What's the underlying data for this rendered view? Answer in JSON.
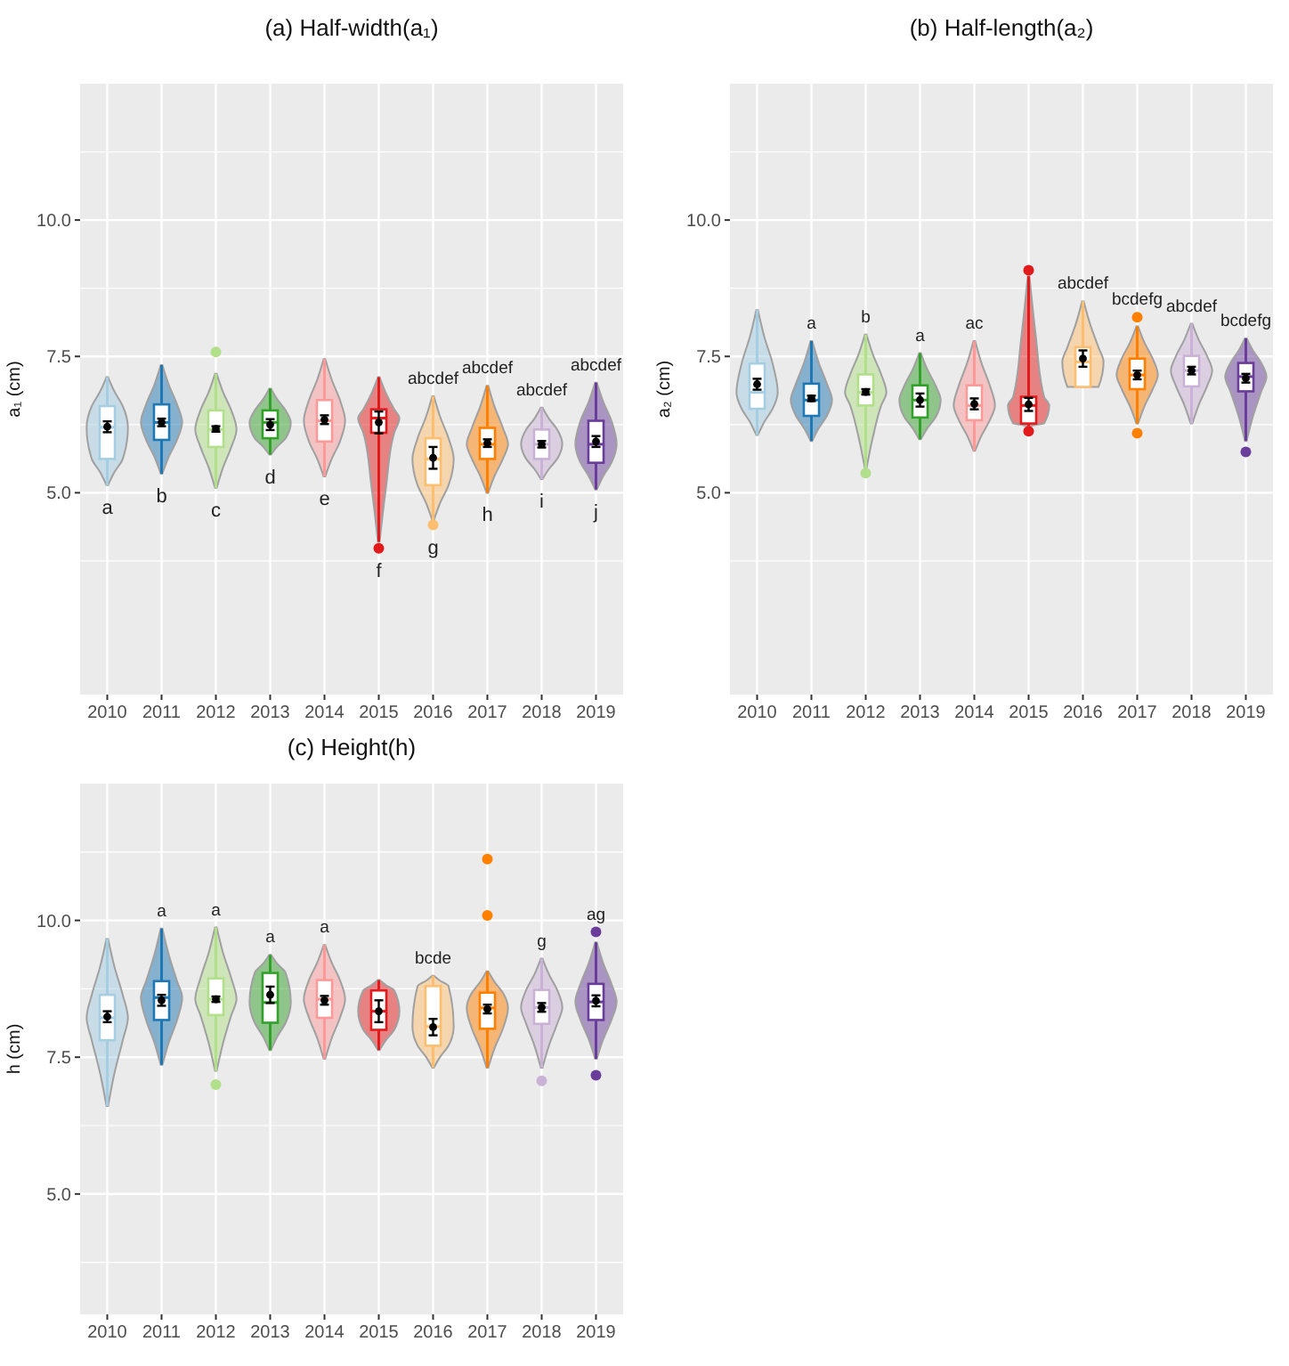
{
  "chart_data": [
    {
      "type": "box",
      "title": "(a)  Half-width(a₁)",
      "ylabel": "a₁ (cm)",
      "categories": [
        "2010",
        "2011",
        "2012",
        "2013",
        "2014",
        "2015",
        "2016",
        "2017",
        "2018",
        "2019"
      ],
      "ylim": [
        1.3,
        12.5
      ],
      "yticks": [
        {
          "value": 3.75,
          "label": null
        },
        {
          "value": 5,
          "label": "5.0"
        },
        {
          "value": 6.25,
          "label": null
        },
        {
          "value": 7.5,
          "label": "7.5"
        },
        {
          "value": 8.75,
          "label": null
        },
        {
          "value": 10,
          "label": "10.0"
        },
        {
          "value": 11.25,
          "label": null
        }
      ],
      "grid": true,
      "series": [
        {
          "type": "box",
          "colors": [
            "#a6cee3",
            "#1f78b4",
            "#b2df8a",
            "#33a02c",
            "#fb9a99",
            "#e31a1c",
            "#fdbf6f",
            "#ff7f00",
            "#cab2d6",
            "#6a3d9a"
          ],
          "value_labels": [
            "a",
            "b",
            "c",
            "d",
            "e",
            "f",
            "g",
            "h",
            "i",
            "j"
          ],
          "boxes": [
            {
              "low": 5.14,
              "q1": 5.62,
              "median": 6.2,
              "q3": 6.59,
              "high": 7.12
            },
            {
              "low": 5.35,
              "q1": 5.97,
              "median": 6.29,
              "q3": 6.62,
              "high": 7.34
            },
            {
              "low": 5.09,
              "q1": 5.84,
              "median": 6.16,
              "q3": 6.51,
              "high": 7.18,
              "outliers": [
                7.58
              ]
            },
            {
              "low": 5.7,
              "q1": 6.0,
              "median": 6.29,
              "q3": 6.51,
              "high": 6.91
            },
            {
              "low": 5.3,
              "q1": 5.94,
              "median": 6.32,
              "q3": 6.7,
              "high": 7.45
            },
            {
              "low": 4.1,
              "q1": 6.1,
              "median": 6.37,
              "q3": 6.53,
              "high": 7.12,
              "outliers": [
                3.98
              ]
            },
            {
              "low": 4.5,
              "q1": 5.14,
              "median": 5.62,
              "q3": 6.0,
              "high": 6.77,
              "outliers": [
                4.41
              ]
            },
            {
              "low": 5.0,
              "q1": 5.62,
              "median": 5.89,
              "q3": 6.19,
              "high": 6.96
            },
            {
              "low": 5.25,
              "q1": 5.62,
              "median": 5.89,
              "q3": 6.16,
              "high": 6.56
            },
            {
              "low": 5.06,
              "q1": 5.55,
              "median": 5.89,
              "q3": 6.32,
              "high": 7.02
            }
          ]
        },
        {
          "type": "scatter",
          "color": "#000000",
          "values": [
            6.21,
            6.29,
            6.17,
            6.25,
            6.34,
            6.29,
            5.64,
            5.91,
            5.89,
            5.94
          ],
          "errors": [
            0.1,
            0.07,
            0.05,
            0.1,
            0.08,
            0.2,
            0.2,
            0.07,
            0.06,
            0.1
          ]
        }
      ],
      "annotations": [
        {
          "text": "abcdef",
          "x": "2016",
          "y": 6.77
        },
        {
          "text": "abcdef",
          "x": "2017",
          "y": 6.96
        },
        {
          "text": "abcdef",
          "x": "2018",
          "y": 6.56
        },
        {
          "text": "abcdef",
          "x": "2019",
          "y": 7.02
        }
      ]
    },
    {
      "type": "box",
      "title": "(b) Half-length(a₂)",
      "ylabel": "a₂ (cm)",
      "categories": [
        "2010",
        "2011",
        "2012",
        "2013",
        "2014",
        "2015",
        "2016",
        "2017",
        "2018",
        "2019"
      ],
      "ylim": [
        1.3,
        12.5
      ],
      "yticks": [
        {
          "value": 3.75,
          "label": null
        },
        {
          "value": 5,
          "label": "5.0"
        },
        {
          "value": 6.25,
          "label": null
        },
        {
          "value": 7.5,
          "label": "7.5"
        },
        {
          "value": 8.75,
          "label": null
        },
        {
          "value": 10,
          "label": "10.0"
        },
        {
          "value": 11.25,
          "label": null
        }
      ],
      "grid": true,
      "series": [
        {
          "type": "box",
          "colors": [
            "#a6cee3",
            "#1f78b4",
            "#b2df8a",
            "#33a02c",
            "#fb9a99",
            "#e31a1c",
            "#fdbf6f",
            "#ff7f00",
            "#cab2d6",
            "#6a3d9a"
          ],
          "boxes": [
            {
              "low": 6.06,
              "q1": 6.54,
              "median": 6.84,
              "q3": 7.37,
              "high": 8.35
            },
            {
              "low": 5.95,
              "q1": 6.41,
              "median": 6.7,
              "q3": 7.0,
              "high": 7.78
            },
            {
              "low": 5.45,
              "q1": 6.6,
              "median": 6.84,
              "q3": 7.17,
              "high": 7.9,
              "outliers": [
                5.36
              ]
            },
            {
              "low": 5.98,
              "q1": 6.38,
              "median": 6.7,
              "q3": 6.97,
              "high": 7.56
            },
            {
              "low": 5.77,
              "q1": 6.33,
              "median": 6.6,
              "q3": 6.97,
              "high": 7.78
            },
            {
              "low": 6.22,
              "q1": 6.27,
              "median": 6.6,
              "q3": 6.76,
              "high": 8.97,
              "outliers": [
                9.08,
                6.13
              ]
            },
            {
              "low": 6.94,
              "q1": 6.94,
              "median": 7.4,
              "q3": 7.67,
              "high": 8.51
            },
            {
              "low": 6.27,
              "q1": 6.9,
              "median": 7.16,
              "q3": 7.46,
              "high": 8.05,
              "outliers": [
                8.22,
                6.09
              ]
            },
            {
              "low": 6.27,
              "q1": 6.95,
              "median": 7.24,
              "q3": 7.51,
              "high": 8.1
            },
            {
              "low": 5.95,
              "q1": 6.86,
              "median": 7.13,
              "q3": 7.38,
              "high": 7.83,
              "outliers": [
                5.75
              ]
            }
          ]
        },
        {
          "type": "scatter",
          "color": "#000000",
          "values": [
            6.99,
            6.73,
            6.85,
            6.7,
            6.63,
            6.62,
            7.46,
            7.16,
            7.24,
            7.1
          ],
          "errors": [
            0.1,
            0.05,
            0.05,
            0.12,
            0.1,
            0.12,
            0.15,
            0.08,
            0.07,
            0.08
          ]
        }
      ],
      "annotations": [
        {
          "text": "a",
          "x": "2011",
          "y": 7.78
        },
        {
          "text": "b",
          "x": "2012",
          "y": 7.9
        },
        {
          "text": "a",
          "x": "2013",
          "y": 7.56
        },
        {
          "text": "ac",
          "x": "2014",
          "y": 7.78
        },
        {
          "text": "abcdef",
          "x": "2016",
          "y": 8.51
        },
        {
          "text": "bcdefg",
          "x": "2017",
          "y": 8.05
        },
        {
          "text": "abcdef",
          "x": "2018",
          "y": 8.1
        },
        {
          "text": "bcdefg",
          "x": "2019",
          "y": 7.83
        }
      ]
    },
    {
      "type": "box",
      "title": "(c) Height(h)",
      "ylabel": "h (cm)",
      "categories": [
        "2010",
        "2011",
        "2012",
        "2013",
        "2014",
        "2015",
        "2016",
        "2017",
        "2018",
        "2019"
      ],
      "ylim": [
        2.8,
        12.5
      ],
      "yticks": [
        {
          "value": 3.75,
          "label": null
        },
        {
          "value": 5,
          "label": "5.0"
        },
        {
          "value": 6.25,
          "label": null
        },
        {
          "value": 7.5,
          "label": "7.5"
        },
        {
          "value": 8.75,
          "label": null
        },
        {
          "value": 10,
          "label": "10.0"
        },
        {
          "value": 11.25,
          "label": null
        }
      ],
      "grid": true,
      "series": [
        {
          "type": "box",
          "colors": [
            "#a6cee3",
            "#1f78b4",
            "#b2df8a",
            "#33a02c",
            "#fb9a99",
            "#e31a1c",
            "#fdbf6f",
            "#ff7f00",
            "#cab2d6",
            "#6a3d9a"
          ],
          "boxes": [
            {
              "low": 6.61,
              "q1": 7.81,
              "median": 8.22,
              "q3": 8.64,
              "high": 9.66
            },
            {
              "low": 7.36,
              "q1": 8.18,
              "median": 8.59,
              "q3": 8.89,
              "high": 9.85
            },
            {
              "low": 7.25,
              "q1": 8.27,
              "median": 8.56,
              "q3": 8.94,
              "high": 9.87,
              "outliers": [
                7.0
              ]
            },
            {
              "low": 7.63,
              "q1": 8.13,
              "median": 8.5,
              "q3": 9.04,
              "high": 9.37
            },
            {
              "low": 7.47,
              "q1": 8.22,
              "median": 8.56,
              "q3": 8.91,
              "high": 9.55
            },
            {
              "low": 7.63,
              "q1": 8.0,
              "median": 8.34,
              "q3": 8.72,
              "high": 8.91
            },
            {
              "low": 7.31,
              "q1": 7.71,
              "median": 8.06,
              "q3": 8.8,
              "high": 8.99
            },
            {
              "low": 7.31,
              "q1": 8.02,
              "median": 8.4,
              "q3": 8.68,
              "high": 9.07,
              "outliers": [
                11.12,
                10.09
              ]
            },
            {
              "low": 7.31,
              "q1": 8.11,
              "median": 8.41,
              "q3": 8.73,
              "high": 9.3,
              "outliers": [
                7.07
              ]
            },
            {
              "low": 7.47,
              "q1": 8.18,
              "median": 8.51,
              "q3": 8.84,
              "high": 9.6,
              "outliers": [
                9.79,
                7.17
              ]
            }
          ]
        },
        {
          "type": "scatter",
          "color": "#000000",
          "values": [
            8.24,
            8.54,
            8.56,
            8.64,
            8.54,
            8.34,
            8.05,
            8.38,
            8.41,
            8.53
          ],
          "errors": [
            0.1,
            0.1,
            0.05,
            0.15,
            0.08,
            0.2,
            0.15,
            0.08,
            0.08,
            0.1
          ]
        }
      ],
      "annotations": [
        {
          "text": "a",
          "x": "2011",
          "y": 9.85
        },
        {
          "text": "a",
          "x": "2012",
          "y": 9.87
        },
        {
          "text": "a",
          "x": "2013",
          "y": 9.37
        },
        {
          "text": "a",
          "x": "2014",
          "y": 9.55
        },
        {
          "text": "bcde",
          "x": "2016",
          "y": 8.99
        },
        {
          "text": "g",
          "x": "2018",
          "y": 9.3
        },
        {
          "text": "ag",
          "x": "2019",
          "y": 9.6
        }
      ]
    }
  ]
}
